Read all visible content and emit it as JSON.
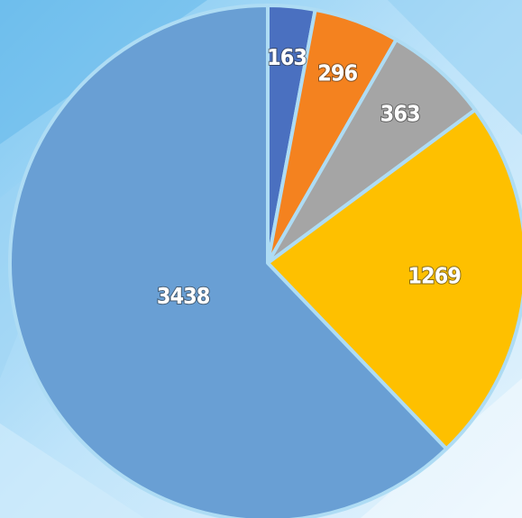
{
  "chart_data": {
    "type": "pie",
    "values": [
      163,
      296,
      363,
      1269,
      3438
    ],
    "colors": [
      "#4a70c0",
      "#f4821f",
      "#a5a5a5",
      "#fec000",
      "#699fd4"
    ],
    "start_angle": 0,
    "direction": "clockwise"
  }
}
